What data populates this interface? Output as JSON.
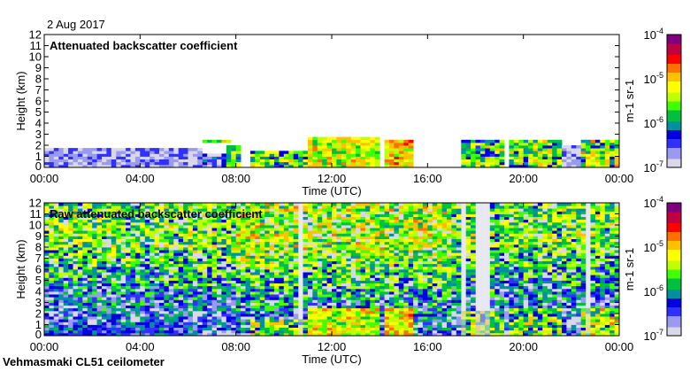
{
  "header": {
    "date": "2 Aug 2017"
  },
  "footer": {
    "instrument": "Vehmasmaki CL51 ceilometer"
  },
  "colors": {
    "colormap": [
      "#d8d8e8",
      "#9a9af0",
      "#3030ff",
      "#0000e0",
      "#0090a0",
      "#00c040",
      "#40ff00",
      "#c0ff00",
      "#ffff00",
      "#ffc000",
      "#ff7000",
      "#ff0000",
      "#c00040",
      "#800080"
    ]
  },
  "chart_data": [
    {
      "type": "heatmap",
      "title": "Attenuated backscatter coefficient",
      "xlabel": "Time (UTC)",
      "ylabel": "Height (km)",
      "xlim": [
        0,
        24
      ],
      "ylim": [
        0,
        12
      ],
      "x_tick_labels": [
        "00:00",
        "04:00",
        "08:00",
        "12:00",
        "16:00",
        "20:00",
        "00:00"
      ],
      "y_tick_labels": [
        "0",
        "1",
        "2",
        "3",
        "4",
        "5",
        "6",
        "7",
        "8",
        "9",
        "10",
        "11",
        "12"
      ],
      "colorbar": {
        "label": "m-1 sr-1",
        "scale": "log",
        "range": [
          1e-07,
          0.0001
        ],
        "tick_labels": [
          "10-7",
          "10-6",
          "10-5",
          "10-4"
        ]
      },
      "background_log10": null,
      "layers": [
        {
          "t": [
            0,
            6.6
          ],
          "h": [
            0,
            1.8
          ],
          "log10": -6.7,
          "spread": 0.3
        },
        {
          "t": [
            6.6,
            7.6
          ],
          "h": [
            0,
            1.2
          ],
          "log10": -6.5,
          "spread": 0.4
        },
        {
          "t": [
            6.7,
            7.8
          ],
          "h": [
            2.2,
            2.6
          ],
          "log10": -5.6,
          "spread": 0.6
        },
        {
          "t": [
            7.6,
            8.2
          ],
          "h": [
            0,
            2.0
          ],
          "log10": -5.9,
          "spread": 0.7
        },
        {
          "t": [
            8.6,
            11.0
          ],
          "h": [
            0,
            1.6
          ],
          "log10": -5.7,
          "spread": 0.7
        },
        {
          "t": [
            11.0,
            14.0
          ],
          "h": [
            0,
            2.8
          ],
          "log10": -5.3,
          "spread": 0.5
        },
        {
          "t": [
            14.2,
            15.3
          ],
          "h": [
            0,
            2.5
          ],
          "log10": -5.1,
          "spread": 0.5
        },
        {
          "t": [
            17.4,
            19.3
          ],
          "h": [
            0,
            2.4
          ],
          "log10": -5.7,
          "spread": 0.7
        },
        {
          "t": [
            19.5,
            21.6
          ],
          "h": [
            0,
            2.6
          ],
          "log10": -5.6,
          "spread": 0.7
        },
        {
          "t": [
            21.6,
            22.4
          ],
          "h": [
            0,
            2.0
          ],
          "log10": -6.7,
          "spread": 0.3
        },
        {
          "t": [
            22.4,
            24
          ],
          "h": [
            0,
            2.6
          ],
          "log10": -5.5,
          "spread": 0.7
        }
      ]
    },
    {
      "type": "heatmap",
      "title": "Raw attenuated backscatter coefficient",
      "xlabel": "Time (UTC)",
      "ylabel": "Height (km)",
      "xlim": [
        0,
        24
      ],
      "ylim": [
        0,
        12
      ],
      "x_tick_labels": [
        "00:00",
        "04:00",
        "08:00",
        "12:00",
        "16:00",
        "20:00",
        "00:00"
      ],
      "y_tick_labels": [
        "0",
        "1",
        "2",
        "3",
        "4",
        "5",
        "6",
        "7",
        "8",
        "9",
        "10",
        "11",
        "12"
      ],
      "colorbar": {
        "label": "m-1 sr-1",
        "scale": "log",
        "range": [
          1e-07,
          0.0001
        ],
        "tick_labels": [
          "10-7",
          "10-6",
          "10-5",
          "10-4"
        ]
      },
      "background_log10": {
        "low": -6.6,
        "high": -5.6,
        "spread": 0.6
      },
      "clear_streaks": [
        [
          10.6,
          10.8
        ],
        [
          17.5,
          17.7
        ],
        [
          18.0,
          18.6
        ],
        [
          22.6,
          22.8
        ]
      ],
      "layers": [
        {
          "t": [
            0,
            6.6
          ],
          "h": [
            0,
            1.0
          ],
          "log10": -6.3,
          "spread": 0.4
        },
        {
          "t": [
            8.6,
            11.0
          ],
          "h": [
            0,
            1.6
          ],
          "log10": -5.6,
          "spread": 0.7
        },
        {
          "t": [
            11.0,
            14.0
          ],
          "h": [
            0,
            2.6
          ],
          "log10": -5.3,
          "spread": 0.5
        },
        {
          "t": [
            14.2,
            15.3
          ],
          "h": [
            0,
            2.4
          ],
          "log10": -5.1,
          "spread": 0.5
        },
        {
          "t": [
            17.4,
            19.3
          ],
          "h": [
            0,
            2.2
          ],
          "log10": -5.6,
          "spread": 0.7
        },
        {
          "t": [
            19.5,
            21.6
          ],
          "h": [
            0,
            2.4
          ],
          "log10": -5.6,
          "spread": 0.7
        },
        {
          "t": [
            22.4,
            24
          ],
          "h": [
            0,
            2.4
          ],
          "log10": -5.5,
          "spread": 0.7
        }
      ]
    }
  ]
}
